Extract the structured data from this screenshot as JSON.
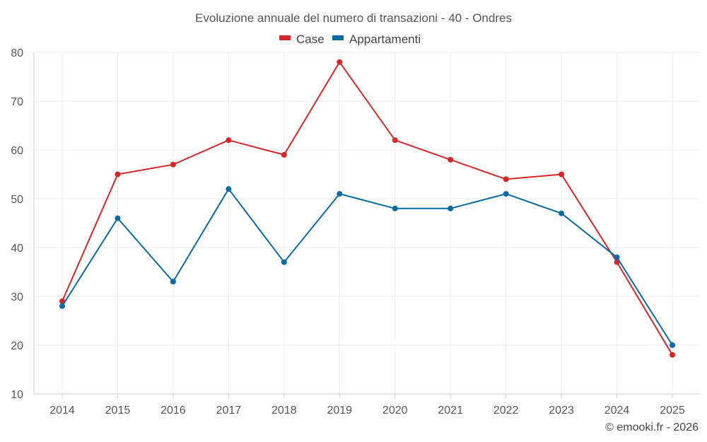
{
  "chart_data": {
    "type": "line",
    "title": "Evoluzione annuale del numero di transazioni - 40 - Ondres",
    "categories": [
      "2014",
      "2015",
      "2016",
      "2017",
      "2018",
      "2019",
      "2020",
      "2021",
      "2022",
      "2023",
      "2024",
      "2025"
    ],
    "series": [
      {
        "name": "Case",
        "color": "#d62728",
        "values": [
          29,
          55,
          57,
          62,
          59,
          78,
          62,
          58,
          54,
          55,
          37,
          18
        ]
      },
      {
        "name": "Appartamenti",
        "color": "#0a6aa1",
        "values": [
          28,
          46,
          33,
          52,
          37,
          51,
          48,
          48,
          51,
          47,
          38,
          20
        ]
      }
    ],
    "yticks": [
      "10",
      "20",
      "30",
      "40",
      "50",
      "60",
      "70",
      "80"
    ],
    "ylim": [
      10,
      80
    ],
    "xlabel": "",
    "ylabel": "",
    "grid": true,
    "legend_position": "top-center"
  },
  "credit": "© emooki.fr - 2026"
}
